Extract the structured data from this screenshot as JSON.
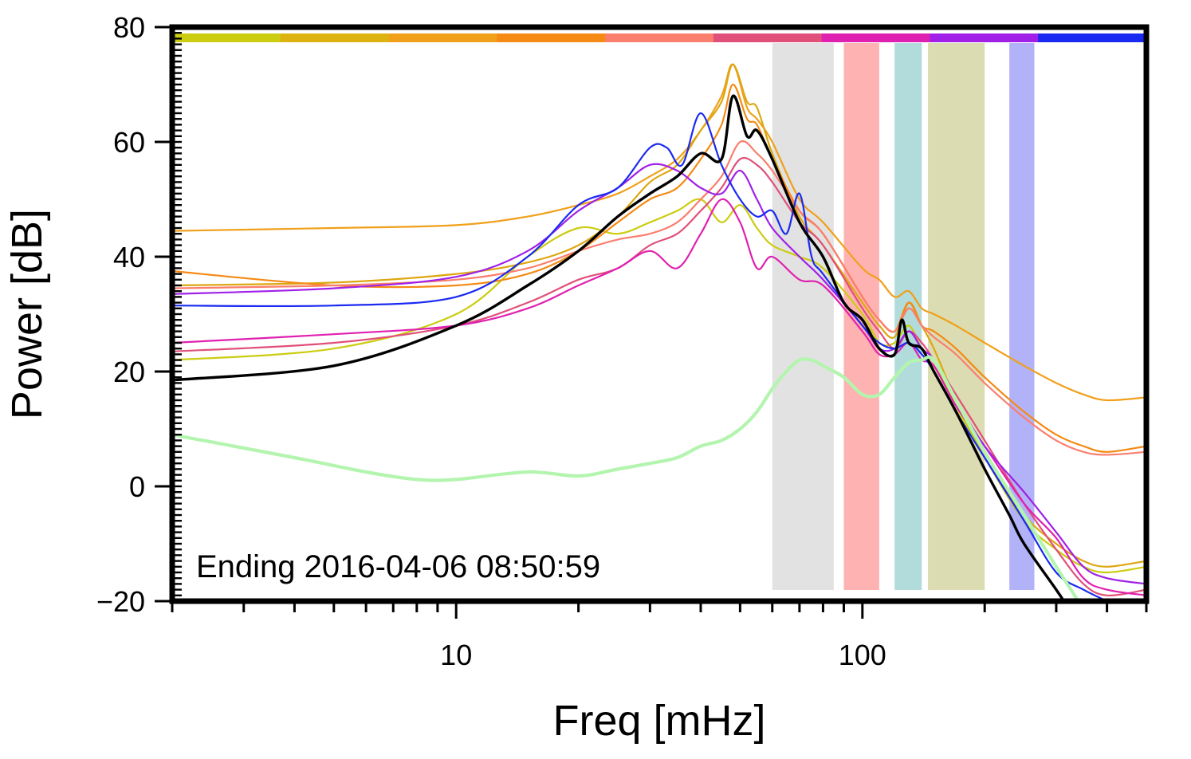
{
  "chart_data": {
    "type": "line",
    "xscale": "log",
    "xlabel": "Freq [mHz]",
    "ylabel": "Power [dB]",
    "xlim": [
      2,
      500
    ],
    "ylim": [
      -20,
      80
    ],
    "xticks": [
      10,
      100
    ],
    "xtick_labels": [
      "10",
      "100"
    ],
    "yticks": [
      -20,
      0,
      20,
      40,
      60,
      80
    ],
    "ytick_labels": [
      "−20",
      "0",
      "20",
      "40",
      "60",
      "80"
    ],
    "annotation": "Ending 2016-04-06 08:50:59",
    "top_bar_colors": [
      "#cccc11",
      "#ddb311",
      "#f0a01a",
      "#f58a14",
      "#fa7e6e",
      "#e0507a",
      "#e020b0",
      "#a020e8",
      "#1a2af0"
    ],
    "bands": [
      {
        "from": 60,
        "to": 85,
        "color": "#e2e2e2"
      },
      {
        "from": 90,
        "to": 110,
        "color": "#ffb2b2"
      },
      {
        "from": 120,
        "to": 140,
        "color": "#b2dcdc"
      },
      {
        "from": 145,
        "to": 200,
        "color": "#dcdcb2"
      },
      {
        "from": 230,
        "to": 265,
        "color": "#b2b2f8"
      }
    ],
    "series": [
      {
        "color": "#f0a01a",
        "width": 2.2,
        "x": [
          2,
          5,
          10,
          15,
          20,
          25,
          30,
          35,
          40,
          45,
          48,
          52,
          55,
          60,
          70,
          80,
          100,
          110,
          120,
          130,
          140,
          150,
          170,
          200,
          250,
          300,
          350,
          400,
          500
        ],
        "y": [
          44.5,
          45,
          45.5,
          47,
          49,
          51,
          54,
          57,
          62,
          68,
          73.5,
          66,
          64,
          60,
          50,
          46,
          38,
          36,
          33,
          34,
          31,
          30,
          28,
          25,
          21,
          18,
          16,
          15,
          15.5
        ]
      },
      {
        "color": "#dda711",
        "width": 2.2,
        "x": [
          2,
          5,
          10,
          15,
          20,
          25,
          30,
          35,
          40,
          45,
          48,
          52,
          55,
          60,
          70,
          80,
          100,
          110,
          120,
          130,
          140,
          150,
          170,
          200,
          250,
          300,
          350,
          400,
          500
        ],
        "y": [
          35,
          35.5,
          37,
          39,
          42,
          47,
          53,
          56,
          62,
          67,
          73.5,
          67,
          66,
          58,
          47,
          42,
          32,
          28,
          26,
          32,
          28,
          24,
          15,
          5,
          -5,
          -10,
          -13,
          -14,
          -13
        ]
      },
      {
        "color": "#cccc11",
        "width": 2.2,
        "x": [
          2,
          5,
          10,
          15,
          20,
          25,
          30,
          35,
          40,
          45,
          50,
          55,
          60,
          70,
          80,
          100,
          110,
          120,
          130,
          140,
          150,
          170,
          200,
          250,
          300,
          350,
          400,
          500
        ],
        "y": [
          22,
          24,
          30,
          40,
          45,
          44,
          46,
          48,
          50,
          46,
          49,
          45,
          42,
          40,
          38,
          30,
          25,
          25,
          28,
          24,
          22,
          14,
          5,
          -6,
          -11,
          -14,
          -15,
          -14
        ]
      },
      {
        "color": "#f58a14",
        "width": 2.2,
        "x": [
          2,
          5,
          10,
          15,
          20,
          25,
          30,
          35,
          40,
          45,
          48,
          52,
          55,
          60,
          70,
          80,
          100,
          110,
          120,
          130,
          140,
          150,
          170,
          200,
          250,
          300,
          350,
          400,
          500
        ],
        "y": [
          37.5,
          35,
          35,
          37,
          41,
          46,
          50,
          52,
          57,
          63,
          70,
          64,
          63,
          57,
          48,
          44,
          33,
          29,
          27,
          32,
          28,
          27,
          24,
          19,
          13,
          9,
          7,
          6,
          7
        ]
      },
      {
        "color": "#fa7e6e",
        "width": 2.2,
        "x": [
          2,
          5,
          10,
          15,
          20,
          25,
          30,
          35,
          40,
          45,
          50,
          55,
          60,
          70,
          80,
          100,
          110,
          120,
          130,
          140,
          150,
          170,
          200,
          250,
          300,
          350,
          400,
          500
        ],
        "y": [
          34.5,
          35,
          36,
          38,
          41,
          43,
          44,
          46,
          50,
          54,
          60,
          58,
          55,
          48,
          44,
          33,
          29,
          27,
          31,
          28,
          26,
          23,
          18,
          12,
          8,
          6,
          5.5,
          6
        ]
      },
      {
        "color": "#e0507a",
        "width": 2.2,
        "x": [
          2,
          5,
          10,
          15,
          20,
          25,
          30,
          35,
          40,
          45,
          50,
          55,
          60,
          70,
          80,
          100,
          110,
          120,
          130,
          140,
          150,
          170,
          200,
          250,
          300,
          350,
          400,
          500
        ],
        "y": [
          23.5,
          25,
          28,
          32,
          36,
          38,
          42,
          44,
          48,
          52,
          57,
          56,
          53,
          46,
          42,
          31,
          27,
          24,
          27,
          25,
          22,
          16,
          8,
          -3,
          -11,
          -17,
          -19,
          -18
        ]
      },
      {
        "color": "#e020b0",
        "width": 2.2,
        "x": [
          2,
          5,
          10,
          15,
          20,
          25,
          30,
          35,
          40,
          45,
          50,
          55,
          60,
          70,
          80,
          100,
          110,
          120,
          130,
          140,
          150,
          170,
          200,
          250,
          300,
          350,
          400,
          500
        ],
        "y": [
          25,
          26.5,
          28,
          31,
          35,
          38,
          41,
          38,
          44,
          50,
          46,
          38,
          40,
          36,
          35,
          27,
          23,
          23,
          25,
          22,
          21,
          14,
          7,
          -3,
          -9,
          -16,
          -18,
          -19
        ]
      },
      {
        "color": "#a020e8",
        "width": 2.2,
        "x": [
          2,
          5,
          10,
          15,
          20,
          25,
          30,
          35,
          40,
          45,
          50,
          55,
          60,
          70,
          80,
          100,
          110,
          120,
          130,
          140,
          150,
          170,
          200,
          250,
          300,
          350,
          400,
          500
        ],
        "y": [
          33.5,
          34.5,
          36.5,
          41,
          48,
          52,
          56,
          55,
          52,
          51,
          55,
          50,
          45,
          40,
          36,
          28,
          24,
          24,
          27,
          24,
          22,
          15,
          7,
          -1,
          -8,
          -14,
          -16,
          -17
        ]
      },
      {
        "color": "#1a2af0",
        "width": 2.2,
        "x": [
          2,
          5,
          10,
          15,
          20,
          25,
          30,
          33,
          36,
          40,
          45,
          50,
          55,
          60,
          65,
          70,
          75,
          80,
          100,
          110,
          120,
          130,
          140,
          150,
          170,
          200,
          250,
          300,
          350,
          400
        ],
        "y": [
          31.5,
          31.5,
          33,
          40,
          49,
          52,
          59,
          59,
          56,
          65,
          56,
          50,
          47,
          48,
          44,
          51,
          40,
          37,
          28,
          25,
          24,
          25,
          23,
          20,
          13,
          5,
          -6,
          -15,
          -18,
          -20
        ]
      },
      {
        "color": "#000000",
        "width": 3.4,
        "x": [
          2,
          5,
          10,
          15,
          20,
          25,
          30,
          35,
          40,
          45,
          48,
          52,
          55,
          60,
          70,
          80,
          90,
          100,
          110,
          120,
          125,
          130,
          140,
          150,
          170,
          200,
          230,
          250,
          300,
          320
        ],
        "y": [
          18.5,
          21,
          28,
          35,
          41,
          47,
          51,
          54,
          58,
          57,
          68,
          61,
          62,
          57,
          46,
          40,
          32,
          29,
          24,
          23,
          29,
          25,
          24,
          20,
          13,
          3,
          -5,
          -10,
          -18,
          -21
        ]
      },
      {
        "color": "#b3f5ae",
        "width": 4.2,
        "x": [
          2,
          4,
          6,
          8,
          10,
          15,
          20,
          25,
          30,
          35,
          40,
          45,
          50,
          55,
          60,
          65,
          70,
          75,
          80,
          90,
          100,
          110,
          120,
          130,
          140,
          150,
          170,
          200,
          250,
          300,
          340
        ],
        "y": [
          9,
          5,
          2.5,
          1.2,
          1.2,
          2.5,
          1.8,
          3,
          4,
          5,
          7,
          8,
          10,
          13,
          17,
          20,
          22,
          22,
          21,
          19,
          16,
          16,
          19,
          21.5,
          22,
          22,
          15,
          6,
          -5,
          -14,
          -20
        ]
      }
    ]
  }
}
